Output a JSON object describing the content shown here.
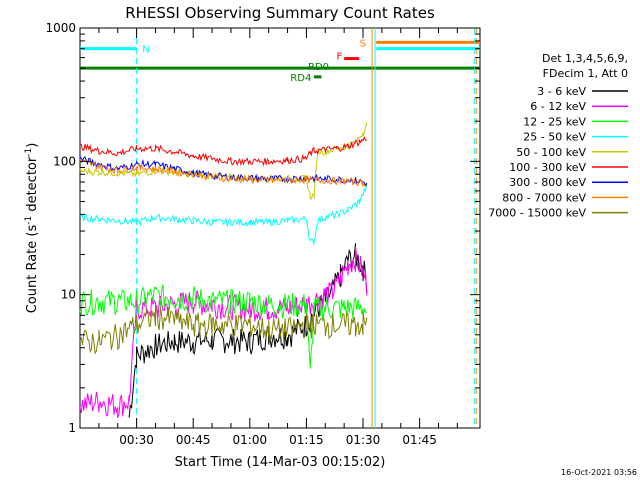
{
  "chart_data": {
    "type": "line",
    "title": "RHESSI Observing Summary Count Rates",
    "xlabel": "Start Time (14-Mar-03 00:15:02)",
    "ylabel_main": "Count Rate (s",
    "ylabel_sup1": "-1",
    "ylabel_mid": " detector",
    "ylabel_sup2": "-1",
    "ylabel_end": ")",
    "y_scale": "log",
    "ylim": [
      1,
      1000
    ],
    "xlim_min": [
      15,
      121
    ],
    "x_ticks": [
      {
        "min": 30,
        "label": "00:30"
      },
      {
        "min": 45,
        "label": "00:45"
      },
      {
        "min": 60,
        "label": "01:00"
      },
      {
        "min": 75,
        "label": "01:15"
      },
      {
        "min": 90,
        "label": "01:30"
      },
      {
        "min": 105,
        "label": "01:45"
      }
    ],
    "y_ticks": [
      {
        "v": 1,
        "label": "1"
      },
      {
        "v": 10,
        "label": "10"
      },
      {
        "v": 100,
        "label": "100"
      },
      {
        "v": 1000,
        "label": "1000"
      }
    ],
    "legend_header": [
      "Det 1,3,4,5,6,9,",
      "FDecim 1, Att 0"
    ],
    "series": [
      {
        "name": "3 - 6 keV",
        "color": "#000000",
        "x": [
          15,
          22,
          28,
          30,
          35,
          40,
          45,
          50,
          55,
          60,
          65,
          70,
          75,
          78,
          80,
          82,
          84,
          86,
          88,
          90,
          91,
          92
        ],
        "y": [
          null,
          null,
          1.2,
          3.5,
          4.2,
          4.5,
          4.5,
          4.6,
          4.6,
          4.5,
          5,
          5,
          6,
          8,
          9,
          11,
          14,
          18,
          20,
          16,
          13,
          null
        ]
      },
      {
        "name": "6 - 12 keV",
        "color": "#ff00ff",
        "x": [
          15,
          20,
          25,
          28,
          30,
          35,
          40,
          45,
          50,
          55,
          60,
          65,
          70,
          75,
          78,
          80,
          82,
          84,
          86,
          88,
          90,
          91,
          92
        ],
        "y": [
          1.5,
          1.6,
          1.5,
          1.6,
          8,
          8,
          8.5,
          9,
          8.5,
          8.2,
          8,
          8,
          8,
          8.5,
          9.5,
          10,
          10.5,
          13,
          17,
          19,
          15,
          12,
          null
        ]
      },
      {
        "name": "12 - 25 keV",
        "color": "#00ff00",
        "x": [
          15,
          20,
          25,
          30,
          35,
          40,
          45,
          50,
          55,
          60,
          65,
          70,
          75,
          76,
          77,
          78,
          80,
          85,
          90,
          91,
          92
        ],
        "y": [
          9,
          9,
          9,
          9,
          10,
          9.5,
          9.5,
          9,
          9,
          9,
          8.5,
          8.5,
          8.5,
          2.5,
          8,
          8,
          8,
          8,
          8,
          7.5,
          null
        ]
      },
      {
        "name": "25 - 50 keV",
        "color": "#00ffff",
        "x": [
          15,
          20,
          25,
          30,
          35,
          40,
          45,
          50,
          55,
          60,
          65,
          70,
          75,
          76,
          77,
          78,
          80,
          83,
          86,
          89,
          91,
          92
        ],
        "y": [
          38,
          37,
          36,
          35,
          38,
          37,
          36,
          35,
          35,
          35,
          35,
          36,
          37,
          25,
          25,
          36,
          38,
          40,
          43,
          50,
          65,
          null
        ]
      },
      {
        "name": "50 - 100 keV",
        "color": "#c8c800",
        "x": [
          15,
          20,
          25,
          30,
          35,
          40,
          45,
          50,
          55,
          60,
          65,
          70,
          75,
          76,
          77,
          78,
          80,
          83,
          86,
          88,
          90,
          91,
          92
        ],
        "y": [
          85,
          83,
          82,
          80,
          85,
          83,
          80,
          78,
          76,
          75,
          74,
          74,
          74,
          55,
          55,
          120,
          118,
          125,
          130,
          140,
          165,
          190,
          null
        ]
      },
      {
        "name": "100 - 300 keV",
        "color": "#ff0000",
        "x": [
          15,
          20,
          25,
          30,
          35,
          40,
          45,
          50,
          55,
          60,
          65,
          70,
          75,
          76,
          77,
          80,
          83,
          86,
          89,
          91,
          92
        ],
        "y": [
          130,
          120,
          115,
          125,
          125,
          118,
          110,
          105,
          100,
          100,
          100,
          102,
          105,
          115,
          120,
          122,
          125,
          130,
          140,
          150,
          null
        ]
      },
      {
        "name": "300 - 800 keV",
        "color": "#0000ff",
        "x": [
          15,
          20,
          25,
          30,
          35,
          40,
          45,
          50,
          55,
          60,
          65,
          70,
          75,
          80,
          85,
          88,
          90,
          91,
          92
        ],
        "y": [
          105,
          95,
          88,
          95,
          95,
          88,
          82,
          78,
          76,
          75,
          74,
          74,
          75,
          74,
          73,
          72,
          70,
          68,
          null
        ]
      },
      {
        "name": "800 - 7000 keV",
        "color": "#ff8000",
        "x": [
          15,
          20,
          25,
          30,
          35,
          40,
          45,
          50,
          55,
          60,
          65,
          70,
          75,
          80,
          85,
          88,
          90,
          91,
          92
        ],
        "y": [
          100,
          92,
          85,
          90,
          88,
          84,
          80,
          76,
          74,
          73,
          72,
          72,
          73,
          72,
          71,
          70,
          69,
          68,
          null
        ]
      },
      {
        "name": "7000 - 15000 keV",
        "color": "#808000",
        "x": [
          15,
          20,
          25,
          30,
          35,
          40,
          45,
          50,
          55,
          60,
          65,
          70,
          75,
          80,
          85,
          88,
          90,
          91,
          92
        ],
        "y": [
          4.5,
          4.5,
          5,
          6,
          7,
          6.5,
          6,
          6,
          6,
          6,
          5.5,
          5.5,
          6,
          6,
          6,
          6,
          6,
          6,
          null
        ]
      }
    ],
    "annotations": [
      {
        "label": "N",
        "color": "#00ffff"
      },
      {
        "label": "F",
        "color": "#ff0000"
      },
      {
        "label": "RD0",
        "color": "#008000"
      },
      {
        "label": "RD4",
        "color": "#008000"
      },
      {
        "label": "S",
        "color": "#ff8000"
      }
    ],
    "footer_timestamp": "16-Oct-2021 03:56"
  }
}
